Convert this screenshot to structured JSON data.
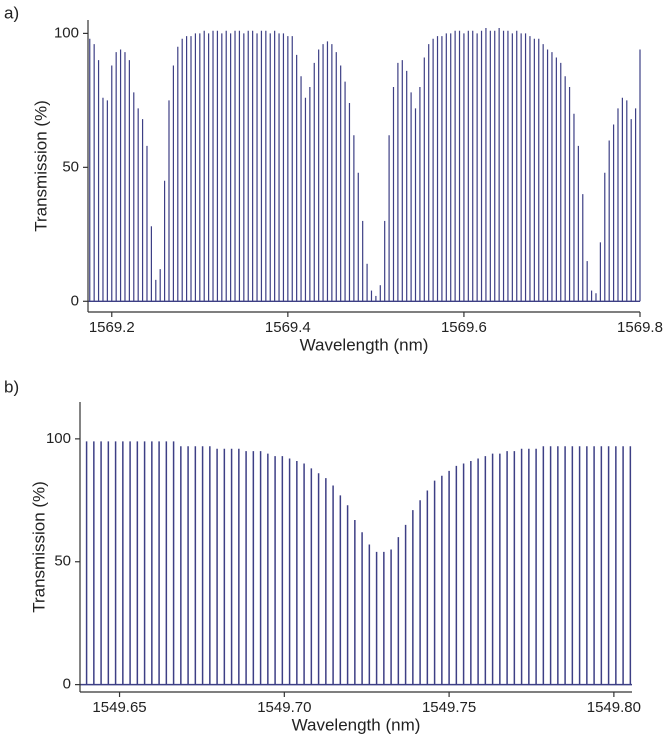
{
  "chart_data": [
    {
      "type": "stem",
      "label": "a)",
      "xlabel": "Wavelength (nm)",
      "ylabel": "Transmission (%)",
      "color": "#3d3f85",
      "xlim": [
        1569.173,
        1569.8
      ],
      "ylim": [
        -4,
        105
      ],
      "xticks": [
        1569.2,
        1569.4,
        1569.6,
        1569.8
      ],
      "yticks": [
        0,
        50,
        100
      ],
      "x": [
        1569.175,
        1569.18,
        1569.185,
        1569.19,
        1569.195,
        1569.2,
        1569.205,
        1569.21,
        1569.215,
        1569.22,
        1569.225,
        1569.23,
        1569.235,
        1569.24,
        1569.245,
        1569.25,
        1569.255,
        1569.26,
        1569.265,
        1569.27,
        1569.275,
        1569.28,
        1569.285,
        1569.29,
        1569.295,
        1569.3,
        1569.305,
        1569.31,
        1569.315,
        1569.32,
        1569.325,
        1569.33,
        1569.335,
        1569.34,
        1569.345,
        1569.35,
        1569.355,
        1569.36,
        1569.365,
        1569.37,
        1569.375,
        1569.38,
        1569.385,
        1569.39,
        1569.395,
        1569.4,
        1569.405,
        1569.41,
        1569.415,
        1569.42,
        1569.425,
        1569.43,
        1569.435,
        1569.44,
        1569.445,
        1569.45,
        1569.455,
        1569.46,
        1569.465,
        1569.47,
        1569.475,
        1569.48,
        1569.485,
        1569.49,
        1569.495,
        1569.5,
        1569.505,
        1569.51,
        1569.515,
        1569.52,
        1569.525,
        1569.53,
        1569.535,
        1569.54,
        1569.545,
        1569.55,
        1569.555,
        1569.56,
        1569.565,
        1569.57,
        1569.575,
        1569.58,
        1569.585,
        1569.59,
        1569.595,
        1569.6,
        1569.605,
        1569.61,
        1569.615,
        1569.62,
        1569.625,
        1569.63,
        1569.635,
        1569.64,
        1569.645,
        1569.65,
        1569.655,
        1569.66,
        1569.665,
        1569.67,
        1569.675,
        1569.68,
        1569.685,
        1569.69,
        1569.695,
        1569.7,
        1569.705,
        1569.71,
        1569.715,
        1569.72,
        1569.725,
        1569.73,
        1569.735,
        1569.74,
        1569.745,
        1569.75,
        1569.755,
        1569.76,
        1569.765,
        1569.77,
        1569.775,
        1569.78,
        1569.785,
        1569.79,
        1569.795,
        1569.8
      ],
      "values": [
        98,
        96,
        90,
        76,
        75,
        88,
        93,
        94,
        93,
        90,
        78,
        72,
        68,
        58,
        28,
        8,
        12,
        45,
        75,
        88,
        95,
        98,
        99,
        99,
        100,
        100,
        101,
        100,
        101,
        101,
        100,
        101,
        100,
        101,
        101,
        100,
        101,
        101,
        100,
        101,
        101,
        100,
        101,
        100,
        100,
        99,
        99,
        92,
        84,
        76,
        80,
        89,
        94,
        96,
        97,
        96,
        93,
        88,
        82,
        74,
        62,
        48,
        30,
        14,
        4,
        2,
        6,
        30,
        62,
        80,
        89,
        90,
        86,
        78,
        72,
        80,
        91,
        96,
        98,
        99,
        99,
        100,
        100,
        101,
        101,
        100,
        101,
        101,
        100,
        101,
        102,
        101,
        101,
        102,
        101,
        101,
        100,
        101,
        100,
        100,
        99,
        98,
        98,
        96,
        94,
        93,
        91,
        89,
        84,
        80,
        70,
        58,
        40,
        15,
        4,
        3,
        22,
        48,
        60,
        66,
        72,
        76,
        75,
        68,
        72,
        94
      ]
    },
    {
      "type": "stem",
      "label": "b)",
      "xlabel": "Wavelength (nm)",
      "ylabel": "Transmission (%)",
      "color": "#3d3f85",
      "xlim": [
        1549.638,
        1549.8055
      ],
      "ylim": [
        -3,
        115
      ],
      "xticks": [
        1549.65,
        {
          "value": 1549.7,
          "label": "1549.70"
        },
        1549.75,
        {
          "value": 1549.8,
          "label": "1549.80"
        }
      ],
      "yticks": [
        0,
        50,
        100
      ],
      "x": [
        1549.64,
        1549.6422,
        1549.6444,
        1549.6466,
        1549.6488,
        1549.651,
        1549.6532,
        1549.6554,
        1549.6576,
        1549.6598,
        1549.662,
        1549.6642,
        1549.6664,
        1549.6686,
        1549.6708,
        1549.673,
        1549.6752,
        1549.6774,
        1549.6796,
        1549.6818,
        1549.684,
        1549.6862,
        1549.6884,
        1549.6906,
        1549.6928,
        1549.695,
        1549.6972,
        1549.6994,
        1549.7016,
        1549.7038,
        1549.706,
        1549.7082,
        1549.7104,
        1549.7126,
        1549.7148,
        1549.717,
        1549.7192,
        1549.7214,
        1549.7236,
        1549.7258,
        1549.728,
        1549.7302,
        1549.7324,
        1549.7346,
        1549.7368,
        1549.739,
        1549.7412,
        1549.7434,
        1549.7456,
        1549.7478,
        1549.75,
        1549.7522,
        1549.7544,
        1549.7566,
        1549.7588,
        1549.761,
        1549.7632,
        1549.7654,
        1549.7676,
        1549.7698,
        1549.772,
        1549.7742,
        1549.7764,
        1549.7786,
        1549.7808,
        1549.783,
        1549.7852,
        1549.7874,
        1549.7896,
        1549.7918,
        1549.794,
        1549.7962,
        1549.7984,
        1549.8006,
        1549.8028,
        1549.805
      ],
      "values": [
        99,
        99,
        99,
        99,
        99,
        99,
        99,
        99,
        99,
        99,
        99,
        99,
        99,
        97,
        97,
        97,
        97,
        97,
        96,
        96,
        96,
        96,
        95,
        95,
        95,
        94,
        93,
        93,
        92,
        91,
        90,
        88,
        86,
        84,
        81,
        77,
        73,
        67,
        62,
        57,
        54,
        54,
        55,
        60,
        65,
        71,
        75,
        79,
        83,
        85,
        87,
        89,
        90,
        91,
        92,
        93,
        94,
        94,
        95,
        95,
        96,
        96,
        96,
        97,
        97,
        97,
        97,
        97,
        97,
        97,
        97,
        97,
        97,
        97,
        97,
        97
      ]
    }
  ]
}
